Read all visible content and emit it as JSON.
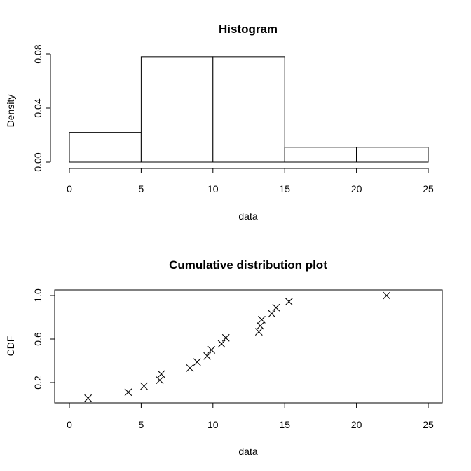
{
  "chart_data": [
    {
      "type": "bar",
      "title": "Histogram",
      "xlabel": "data",
      "ylabel": "Density",
      "bins": [
        {
          "from": 0,
          "to": 5,
          "density": 0.022
        },
        {
          "from": 5,
          "to": 10,
          "density": 0.078
        },
        {
          "from": 10,
          "to": 15,
          "density": 0.078
        },
        {
          "from": 15,
          "to": 20,
          "density": 0.011
        },
        {
          "from": 20,
          "to": 25,
          "density": 0.011
        }
      ],
      "xlim": [
        0,
        25
      ],
      "ylim": [
        0,
        0.08
      ],
      "xticks": [
        "0",
        "5",
        "10",
        "15",
        "20",
        "25"
      ],
      "yticks": [
        "0.00",
        "0.04",
        "0.08"
      ],
      "grid": false
    },
    {
      "type": "scatter",
      "title": "Cumulative distribution plot",
      "xlabel": "data",
      "ylabel": "CDF",
      "marker": "x",
      "points": [
        {
          "x": 1.3,
          "y": 0.056
        },
        {
          "x": 4.1,
          "y": 0.111
        },
        {
          "x": 5.2,
          "y": 0.167
        },
        {
          "x": 6.3,
          "y": 0.222
        },
        {
          "x": 6.4,
          "y": 0.278
        },
        {
          "x": 8.4,
          "y": 0.333
        },
        {
          "x": 8.9,
          "y": 0.389
        },
        {
          "x": 9.6,
          "y": 0.444
        },
        {
          "x": 9.9,
          "y": 0.5
        },
        {
          "x": 10.6,
          "y": 0.556
        },
        {
          "x": 10.9,
          "y": 0.611
        },
        {
          "x": 13.2,
          "y": 0.667
        },
        {
          "x": 13.3,
          "y": 0.722
        },
        {
          "x": 13.4,
          "y": 0.778
        },
        {
          "x": 14.1,
          "y": 0.833
        },
        {
          "x": 14.4,
          "y": 0.889
        },
        {
          "x": 15.3,
          "y": 0.944
        },
        {
          "x": 22.1,
          "y": 1.0
        }
      ],
      "xlim": [
        0,
        25
      ],
      "ylim": [
        0.2,
        1.0
      ],
      "xticks": [
        "0",
        "5",
        "10",
        "15",
        "20",
        "25"
      ],
      "yticks": [
        "0.2",
        "0.6",
        "1.0"
      ],
      "grid": false
    }
  ]
}
